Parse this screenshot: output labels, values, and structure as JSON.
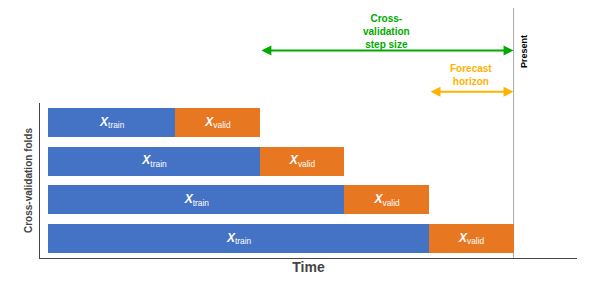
{
  "chart_data": {
    "type": "bar",
    "orientation": "horizontal",
    "stacked": true,
    "xlabel": "Time",
    "ylabel": "Cross-validation folds",
    "categories": [
      null,
      null,
      null,
      null
    ],
    "series": [
      {
        "name": "train",
        "color": "#4472C4",
        "values": [
          3.0,
          5.0,
          7.0,
          9.0
        ],
        "text": "X"
      },
      {
        "name": "valid",
        "color": "#E87722",
        "values": [
          2.0,
          2.0,
          2.0,
          2.0
        ],
        "text": "X"
      }
    ],
    "xlim": [
      -0.2,
      12.5
    ],
    "xticks": [],
    "tick_labels": false,
    "grid": false,
    "annotations": [
      {
        "text": "Present",
        "x": 11.0,
        "color": "#AAAAAA"
      },
      {
        "text": "Cross-\nvalidation\nstep size",
        "x": [
          5.0,
          11.0
        ],
        "color": "#00AA00"
      },
      {
        "text": "Forecast\nhorizon",
        "x": [
          9.0,
          11.0
        ],
        "color": "#FFB300"
      }
    ]
  }
}
